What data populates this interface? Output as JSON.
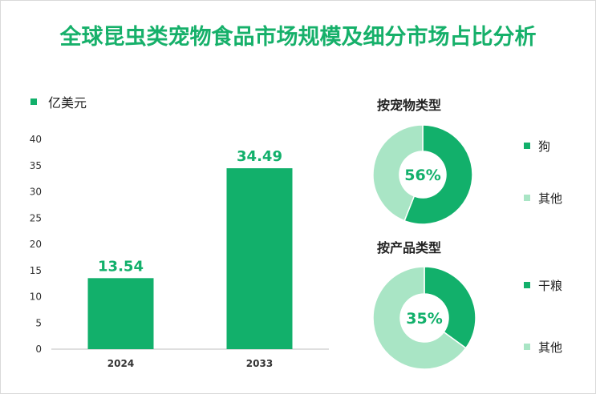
{
  "title": "全球昆虫类宠物食品市场规模及细分市场占比分析",
  "colors": {
    "primary": "#12b06b",
    "light": "#a9e5c5",
    "title": "#16b06a"
  },
  "chart_data": [
    {
      "type": "bar",
      "legend": "亿美元",
      "categories": [
        "2024",
        "2033"
      ],
      "values": [
        13.54,
        34.49
      ],
      "value_labels": [
        "13.54",
        "34.49"
      ],
      "ylim": [
        0,
        40
      ],
      "yticks": [
        0,
        5,
        10,
        15,
        20,
        25,
        30,
        35,
        40
      ]
    },
    {
      "type": "pie",
      "title": "按宠物类型",
      "center_label": "56%",
      "slices": [
        {
          "name": "狗",
          "value": 56
        },
        {
          "name": "其他",
          "value": 44
        }
      ]
    },
    {
      "type": "pie",
      "title": "按产品类型",
      "center_label": "35%",
      "slices": [
        {
          "name": "干粮",
          "value": 35
        },
        {
          "name": "其他",
          "value": 65
        }
      ]
    }
  ]
}
